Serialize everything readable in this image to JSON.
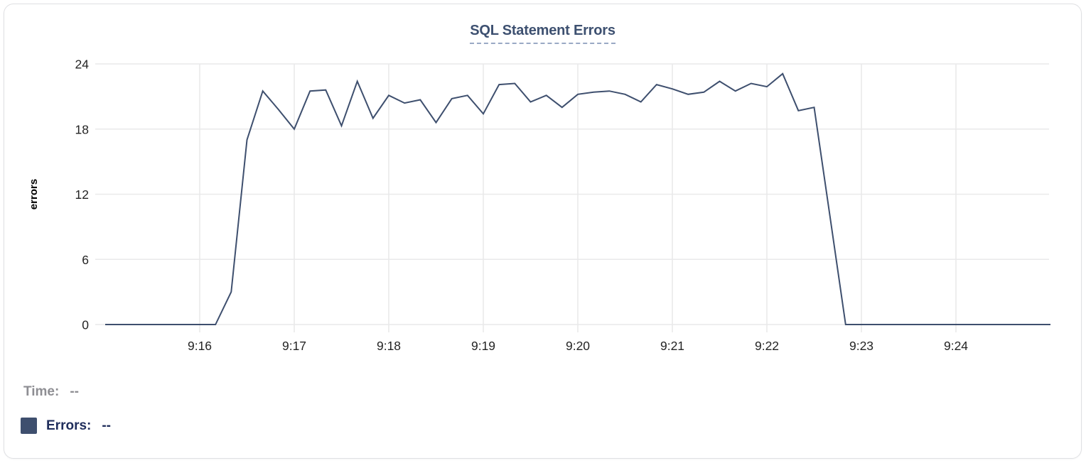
{
  "card": {
    "title": "SQL Statement Errors"
  },
  "tooltip_readout": {
    "time_label": "Time:",
    "time_value": "--",
    "errors_label": "Errors:",
    "errors_value": "--"
  },
  "colors": {
    "title": "#3d5070",
    "title_underline": "#9aa9c5",
    "line": "#3e4f6e",
    "grid": "#e9e9ea",
    "axis_text": "#242424",
    "ylabel_text": "#000000",
    "time_text": "#8e8e93",
    "errors_text": "#202e5c",
    "swatch": "#3e4f6e"
  },
  "chart_data": {
    "type": "line",
    "title": "SQL Statement Errors",
    "xlabel": "",
    "ylabel": "errors",
    "ylim": [
      0,
      24
    ],
    "yticks": [
      0,
      6,
      12,
      18,
      24
    ],
    "xticks": [
      "9:16",
      "9:17",
      "9:18",
      "9:19",
      "9:20",
      "9:21",
      "9:22",
      "9:23",
      "9:24"
    ],
    "x_start": "9:15:00",
    "x_end": "9:25:00",
    "interval_seconds": 10,
    "grid": true,
    "legend_position": "none",
    "series": [
      {
        "name": "Errors",
        "color": "#3e4f6e",
        "values": [
          0,
          0,
          0,
          0,
          0,
          0,
          0,
          0,
          3,
          17,
          21.5,
          19.8,
          18,
          21.5,
          21.6,
          18.3,
          22.4,
          19,
          21.1,
          20.4,
          20.7,
          18.6,
          20.8,
          21.1,
          19.4,
          22.1,
          22.2,
          20.5,
          21.1,
          20,
          21.2,
          21.4,
          21.5,
          21.2,
          20.5,
          22.1,
          21.7,
          21.2,
          21.4,
          22.4,
          21.5,
          22.2,
          21.9,
          23.1,
          19.7,
          20,
          10,
          0,
          0,
          0,
          0,
          0,
          0,
          0,
          0,
          0,
          0,
          0,
          0,
          0,
          0
        ]
      }
    ]
  }
}
